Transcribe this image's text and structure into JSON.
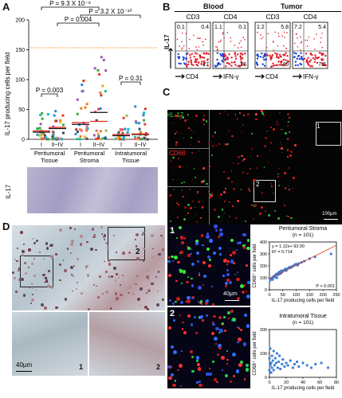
{
  "panel_labels": [
    "A",
    "B",
    "C",
    "D"
  ],
  "panelA": {
    "ylabel": "IL-17 producing cells per field",
    "y_ticks": [
      "0",
      "50",
      "100",
      "150",
      "200"
    ],
    "brackets": [
      {
        "label": "P = 9.3 X 10⁻⁹"
      },
      {
        "label": "P = 3.2 X 10⁻¹⁰"
      },
      {
        "label": "P = 0.004"
      },
      {
        "label": "P = 0.003"
      },
      {
        "label": "P = 0.31"
      }
    ],
    "stage_labels": [
      "I",
      "II~IV",
      "I",
      "II~IV",
      "I",
      "II~IV"
    ],
    "groups": [
      "Peritumoral Tissue",
      "Peritumoral Stroma",
      "Intratumoral Tissue"
    ],
    "group_lines": [
      "Peritumoral",
      "Tissue",
      "Peritumoral",
      "Stroma",
      "Intratumoral",
      "Tissue"
    ],
    "micro_label": "IL-17",
    "colors": {
      "red_line": "#e0261c",
      "black_line": "#111111",
      "dotted": "#f08a2a"
    }
  },
  "panelB": {
    "blood_title": "Blood",
    "tumor_title": "Tumor",
    "col_heads": [
      "CD3",
      "CD4",
      "CD3",
      "CD4"
    ],
    "yaxis": "IL-17",
    "x_labels": [
      "CD4",
      "IFN-γ",
      "CD4",
      "IFN-γ"
    ],
    "quadrants": [
      {
        "ul": "0.1",
        "ur": "0.4",
        "lr": "27"
      },
      {
        "ul": "1.1",
        "ur": "0.1",
        "lr": "26"
      },
      {
        "ul": "1.2",
        "ur": "5.8",
        "lr": "40"
      },
      {
        "ul": "7.2",
        "ur": "5.4",
        "lr": "7.6"
      }
    ]
  },
  "panelC": {
    "labels": [
      "IL-17",
      "CD68"
    ],
    "boxes": [
      "1",
      "2"
    ],
    "scale": "100μm"
  },
  "panelD": {
    "boxes": [
      "1",
      "2"
    ],
    "scale": "40μm",
    "inset_nums": [
      "1",
      "2"
    ]
  },
  "insets": {
    "nums": [
      "1",
      "2"
    ],
    "scale": "40μm"
  },
  "scatters": [
    {
      "title": "Peritumoral Stroma",
      "n": "(n = 101)",
      "eq": "y = 1.12x+ 93.00",
      "r2": "R² = 0.714",
      "p": "P < 0.001",
      "ylabel": "CD68⁺ cells per field",
      "xlabel": "IL-17 producing cells per field",
      "y_ticks": [
        "0",
        "100",
        "200",
        "300",
        "400"
      ],
      "x_ticks": [
        "0",
        "50",
        "100",
        "150",
        "200",
        "250"
      ],
      "chart_data": {
        "type": "scatter",
        "xlim": [
          0,
          250
        ],
        "ylim": [
          0,
          400
        ],
        "fit": {
          "slope": 1.12,
          "intercept": 93.0
        },
        "x": [
          3,
          5,
          8,
          10,
          12,
          15,
          18,
          20,
          22,
          25,
          28,
          30,
          32,
          35,
          38,
          40,
          42,
          45,
          48,
          50,
          55,
          60,
          62,
          65,
          70,
          75,
          80,
          85,
          90,
          95,
          100,
          105,
          110,
          120,
          130,
          150,
          170,
          230
        ],
        "y": [
          80,
          90,
          95,
          100,
          85,
          110,
          115,
          105,
          120,
          130,
          100,
          125,
          140,
          130,
          150,
          145,
          135,
          160,
          150,
          155,
          165,
          175,
          160,
          170,
          180,
          190,
          185,
          195,
          200,
          210,
          215,
          205,
          220,
          230,
          240,
          260,
          275,
          300
        ]
      }
    },
    {
      "title": "Intratumoral Tissue",
      "n": "(n = 101)",
      "ylabel": "CD68⁺ cells per field",
      "xlabel": "IL-17 producing cells per field",
      "y_ticks": [
        "0",
        "100",
        "200"
      ],
      "x_ticks": [
        "0",
        "20",
        "40",
        "60",
        "80"
      ],
      "chart_data": {
        "type": "scatter",
        "xlim": [
          0,
          80
        ],
        "ylim": [
          0,
          200
        ],
        "x": [
          0,
          0,
          1,
          1,
          2,
          2,
          3,
          3,
          4,
          5,
          5,
          6,
          7,
          8,
          9,
          10,
          11,
          12,
          13,
          15,
          16,
          18,
          20,
          22,
          25,
          28,
          30,
          33,
          35,
          40,
          45,
          50,
          55,
          62,
          70
        ],
        "y": [
          30,
          80,
          50,
          120,
          20,
          60,
          90,
          40,
          70,
          110,
          30,
          50,
          80,
          60,
          100,
          40,
          65,
          90,
          35,
          55,
          75,
          45,
          60,
          50,
          70,
          40,
          55,
          65,
          45,
          60,
          50,
          40,
          55,
          60,
          40
        ]
      }
    }
  ]
}
